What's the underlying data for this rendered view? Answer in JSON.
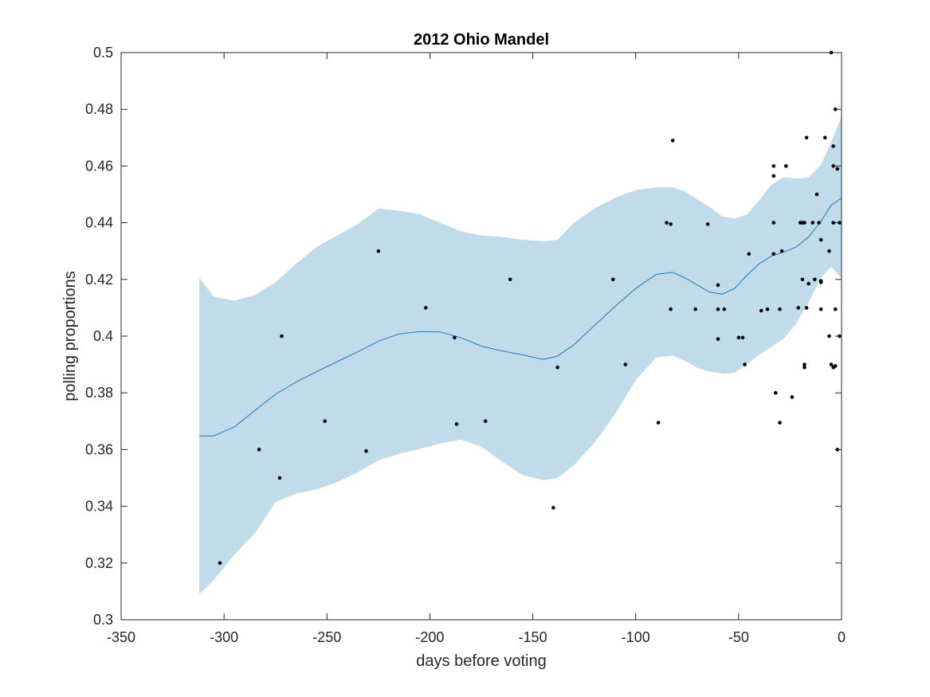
{
  "chart_data": {
    "type": "scatter",
    "title": "2012 Ohio Mandel",
    "xlabel": "days before voting",
    "ylabel": "polling proportions",
    "xlim": [
      -350,
      0
    ],
    "ylim": [
      0.3,
      0.5
    ],
    "xticks": [
      -350,
      -300,
      -250,
      -200,
      -150,
      -100,
      -50,
      0
    ],
    "xtick_labels": [
      "-350",
      "-300",
      "-250",
      "-200",
      "-150",
      "-100",
      "-50",
      "0"
    ],
    "yticks": [
      0.3,
      0.32,
      0.34,
      0.36,
      0.38,
      0.4,
      0.42,
      0.44,
      0.46,
      0.48,
      0.5
    ],
    "ytick_labels": [
      "0.3",
      "0.32",
      "0.34",
      "0.36",
      "0.38",
      "0.4",
      "0.42",
      "0.44",
      "0.46",
      "0.48",
      "0.5"
    ],
    "grid": false,
    "colors": {
      "band": "#c0dcea",
      "line": "#1f77c4",
      "points": "#000000",
      "axes": "#262626"
    },
    "points": [
      [
        -302,
        0.32
      ],
      [
        -283,
        0.36
      ],
      [
        -273,
        0.35
      ],
      [
        -272,
        0.4
      ],
      [
        -251,
        0.37
      ],
      [
        -231,
        0.3595
      ],
      [
        -225,
        0.43
      ],
      [
        -202,
        0.41
      ],
      [
        -188,
        0.3995
      ],
      [
        -187,
        0.369
      ],
      [
        -173,
        0.37
      ],
      [
        -161,
        0.42
      ],
      [
        -140,
        0.3395
      ],
      [
        -138,
        0.389
      ],
      [
        -111,
        0.42
      ],
      [
        -105,
        0.39
      ],
      [
        -89,
        0.3695
      ],
      [
        -85,
        0.44
      ],
      [
        -83,
        0.4395
      ],
      [
        -83,
        0.4095
      ],
      [
        -82,
        0.469
      ],
      [
        -71,
        0.4095
      ],
      [
        -65,
        0.4395
      ],
      [
        -60,
        0.418
      ],
      [
        -60,
        0.4095
      ],
      [
        -60,
        0.399
      ],
      [
        -57,
        0.4095
      ],
      [
        -50,
        0.3995
      ],
      [
        -48,
        0.3995
      ],
      [
        -47,
        0.39
      ],
      [
        -45,
        0.429
      ],
      [
        -39,
        0.409
      ],
      [
        -36,
        0.4095
      ],
      [
        -33,
        0.46
      ],
      [
        -33,
        0.4565
      ],
      [
        -33,
        0.44
      ],
      [
        -33,
        0.429
      ],
      [
        -32,
        0.38
      ],
      [
        -30,
        0.4095
      ],
      [
        -30,
        0.3695
      ],
      [
        -29,
        0.43
      ],
      [
        -27,
        0.46
      ],
      [
        -24,
        0.3785
      ],
      [
        -21,
        0.41
      ],
      [
        -20,
        0.44
      ],
      [
        -19,
        0.44
      ],
      [
        -19,
        0.42
      ],
      [
        -18,
        0.44
      ],
      [
        -18,
        0.39
      ],
      [
        -18,
        0.389
      ],
      [
        -17,
        0.47
      ],
      [
        -17,
        0.41
      ],
      [
        -16,
        0.4185
      ],
      [
        -14,
        0.44
      ],
      [
        -13,
        0.42
      ],
      [
        -12,
        0.45
      ],
      [
        -11,
        0.44
      ],
      [
        -10,
        0.434
      ],
      [
        -10,
        0.4195
      ],
      [
        -10,
        0.419
      ],
      [
        -10,
        0.4095
      ],
      [
        -8,
        0.47
      ],
      [
        -6,
        0.43
      ],
      [
        -6,
        0.4
      ],
      [
        -5,
        0.5
      ],
      [
        -5,
        0.39
      ],
      [
        -4,
        0.467
      ],
      [
        -4,
        0.46
      ],
      [
        -4,
        0.44
      ],
      [
        -4,
        0.389
      ],
      [
        -3,
        0.48
      ],
      [
        -3,
        0.4095
      ],
      [
        -3,
        0.3895
      ],
      [
        -2,
        0.459
      ],
      [
        -2,
        0.36
      ],
      [
        -1,
        0.44
      ],
      [
        -1,
        0.4
      ]
    ],
    "fit_x": [
      -312,
      -305,
      -295,
      -285,
      -275,
      -265,
      -255,
      -245,
      -235,
      -225,
      -215,
      -205,
      -195,
      -185,
      -175,
      -165,
      -155,
      -145,
      -138,
      -130,
      -120,
      -110,
      -100,
      -90,
      -82,
      -76,
      -70,
      -64,
      -58,
      -52,
      -46,
      -40,
      -34,
      -28,
      -22,
      -16,
      -10,
      -5,
      0
    ],
    "fit_mean": [
      0.3648,
      0.3648,
      0.368,
      0.3738,
      0.3795,
      0.3838,
      0.3875,
      0.391,
      0.3945,
      0.3982,
      0.4008,
      0.4016,
      0.4015,
      0.3995,
      0.3965,
      0.3948,
      0.3934,
      0.3918,
      0.393,
      0.397,
      0.4038,
      0.4105,
      0.4168,
      0.4218,
      0.4225,
      0.4205,
      0.418,
      0.4155,
      0.4148,
      0.4168,
      0.4215,
      0.4255,
      0.4283,
      0.4297,
      0.4315,
      0.435,
      0.4405,
      0.4462,
      0.4487
    ],
    "fit_upper": [
      0.4205,
      0.414,
      0.4125,
      0.4145,
      0.419,
      0.4255,
      0.4315,
      0.4355,
      0.4395,
      0.445,
      0.4442,
      0.443,
      0.44,
      0.437,
      0.4355,
      0.435,
      0.434,
      0.4335,
      0.434,
      0.44,
      0.445,
      0.4488,
      0.4515,
      0.4525,
      0.4525,
      0.451,
      0.4482,
      0.4455,
      0.4422,
      0.4415,
      0.4428,
      0.448,
      0.4535,
      0.456,
      0.4555,
      0.456,
      0.4605,
      0.4685,
      0.4775
    ],
    "fit_lower": [
      0.309,
      0.314,
      0.323,
      0.3305,
      0.3415,
      0.3445,
      0.346,
      0.3485,
      0.352,
      0.3562,
      0.3585,
      0.3602,
      0.3622,
      0.3635,
      0.361,
      0.3558,
      0.351,
      0.3492,
      0.35,
      0.3545,
      0.3625,
      0.3725,
      0.3845,
      0.3925,
      0.3932,
      0.3912,
      0.3888,
      0.3875,
      0.3868,
      0.387,
      0.3902,
      0.3935,
      0.3962,
      0.3992,
      0.4045,
      0.412,
      0.4205,
      0.4245,
      0.4205
    ]
  }
}
